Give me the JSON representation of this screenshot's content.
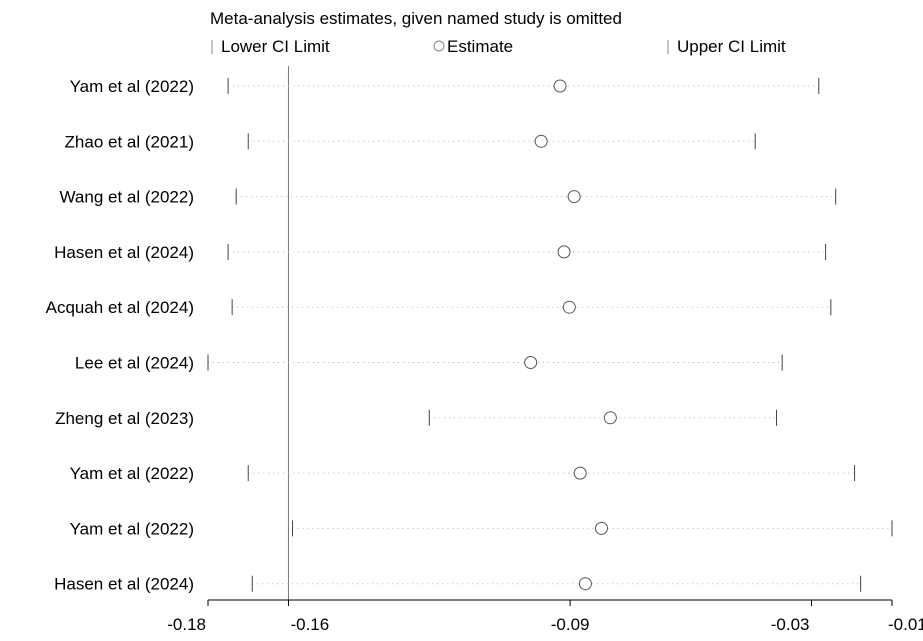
{
  "chart_data": {
    "type": "sensitivity-forest",
    "title": "Meta-analysis estimates, given named study is omitted",
    "legend": {
      "placement": "top",
      "entries": [
        {
          "symbol": "tick",
          "label": "Lower CI Limit"
        },
        {
          "symbol": "circle",
          "label": "Estimate"
        },
        {
          "symbol": "tick",
          "label": "Upper CI Limit"
        }
      ]
    },
    "x_axis": {
      "range": [
        -0.18,
        -0.01
      ],
      "ticks": [
        "-0.18",
        "-0.16",
        "-0.09",
        "-0.03",
        "-0.01"
      ],
      "tick_values": [
        -0.18,
        -0.16,
        -0.09,
        -0.03,
        -0.01
      ]
    },
    "reference_line": -0.16,
    "studies": [
      {
        "label": "Yam et al (2022)",
        "lower": -0.175,
        "estimate": -0.0925,
        "upper": -0.0282
      },
      {
        "label": "Zhao et al (2021)",
        "lower": -0.17,
        "estimate": -0.0972,
        "upper": -0.044
      },
      {
        "label": "Wang et al (2022)",
        "lower": -0.173,
        "estimate": -0.089,
        "upper": -0.024
      },
      {
        "label": "Hasen et al (2024)",
        "lower": -0.175,
        "estimate": -0.0915,
        "upper": -0.0265
      },
      {
        "label": "Acquah et al (2024)",
        "lower": -0.174,
        "estimate": -0.0902,
        "upper": -0.0252
      },
      {
        "label": "Lee et al (2024)",
        "lower": -0.18,
        "estimate": -0.0998,
        "upper": -0.0373
      },
      {
        "label": "Zheng et al (2023)",
        "lower": -0.125,
        "estimate": -0.08,
        "upper": -0.0387
      },
      {
        "label": "Yam et al (2022)",
        "lower": -0.17,
        "estimate": -0.0875,
        "upper": -0.0193
      },
      {
        "label": "Yam et al (2022)",
        "lower": -0.159,
        "estimate": -0.0822,
        "upper": -0.01
      },
      {
        "label": "Hasen et al (2024)",
        "lower": -0.169,
        "estimate": -0.0862,
        "upper": -0.0178
      }
    ]
  }
}
